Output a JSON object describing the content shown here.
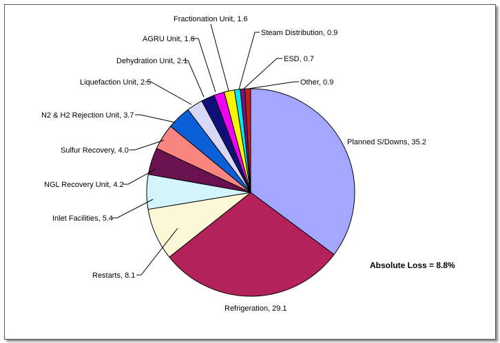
{
  "chart_data": {
    "type": "pie",
    "title": "",
    "annotation": "Absolute Loss = 8.8%",
    "slices": [
      {
        "label": "Planned S/Downs",
        "value": 35.2,
        "color": "#a3a7ff"
      },
      {
        "label": "Refrigeration",
        "value": 29.1,
        "color": "#b5215a"
      },
      {
        "label": "Restarts",
        "value": 8.1,
        "color": "#fbf8d8"
      },
      {
        "label": "Inlet Facilities",
        "value": 5.4,
        "color": "#d2f6fb"
      },
      {
        "label": "NGL Recovery Unit",
        "value": 4.2,
        "color": "#6a1250"
      },
      {
        "label": "Sulfur Recovery",
        "value": 4.0,
        "color": "#f88580"
      },
      {
        "label": "N2 & H2 Rejection Unit",
        "value": 3.7,
        "color": "#0b5fd7"
      },
      {
        "label": "Liquefaction Unit",
        "value": 2.5,
        "color": "#d8d7f7"
      },
      {
        "label": "Dehydration Unit",
        "value": 2.1,
        "color": "#10107a"
      },
      {
        "label": "AGRU Unit",
        "value": 1.6,
        "color": "#f202f2"
      },
      {
        "label": "Fractionation Unit",
        "value": 1.6,
        "color": "#f6f409"
      },
      {
        "label": "Steam Distribution",
        "value": 0.9,
        "color": "#08e8f2"
      },
      {
        "label": "ESD",
        "value": 0.7,
        "color": "#78147a"
      },
      {
        "label": "Other",
        "value": 0.9,
        "color": "#bf1f1f"
      }
    ],
    "legend": "none",
    "data_labels": "category, value"
  }
}
